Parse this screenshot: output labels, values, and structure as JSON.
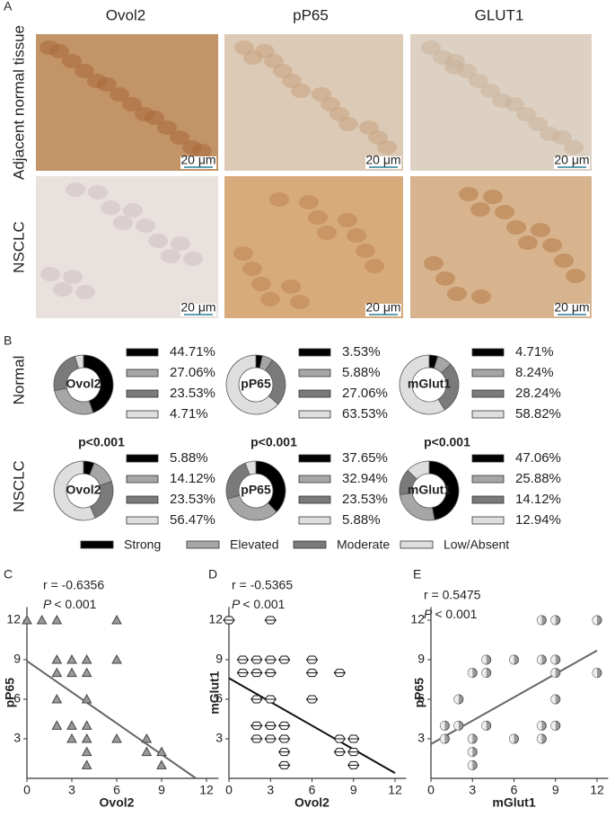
{
  "figure_a": {
    "label": "A",
    "columns": [
      "Ovol2",
      "pP65",
      "GLUT1"
    ],
    "rows": [
      "Adjacent normal tissue",
      "NSCLC"
    ],
    "scale_bar": "20 μm"
  },
  "chart_data": [
    {
      "type": "donut-grid",
      "panel": "B",
      "categories": [
        "Strong",
        "Elevated",
        "Moderate",
        "Low/Absent"
      ],
      "colors": [
        "#000000",
        "#a6a6a6",
        "#7a7a7a",
        "#dedede"
      ],
      "rows": [
        {
          "name": "Normal",
          "donuts": [
            {
              "label": "Ovol2",
              "values": [
                44.71,
                27.06,
                23.53,
                4.71
              ],
              "value_labels": [
                "44.71%",
                "27.06%",
                "23.53%",
                "4.71%"
              ]
            },
            {
              "label": "pP65",
              "values": [
                3.53,
                5.88,
                27.06,
                63.53
              ],
              "value_labels": [
                "3.53%",
                "5.88%",
                "27.06%",
                "63.53%"
              ]
            },
            {
              "label": "mGlut1",
              "values": [
                4.71,
                8.24,
                28.24,
                58.82
              ],
              "value_labels": [
                "4.71%",
                "8.24%",
                "28.24%",
                "58.82%"
              ]
            }
          ]
        },
        {
          "name": "NSCLC",
          "annotation": "p<0.001",
          "donuts": [
            {
              "label": "Ovol2",
              "values": [
                5.88,
                14.12,
                23.53,
                56.47
              ],
              "value_labels": [
                "5.88%",
                "14.12%",
                "23.53%",
                "56.47%"
              ]
            },
            {
              "label": "pP65",
              "values": [
                37.65,
                32.94,
                23.53,
                5.88
              ],
              "value_labels": [
                "37.65%",
                "32.94%",
                "23.53%",
                "5.88%"
              ]
            },
            {
              "label": "mGlut1",
              "values": [
                47.06,
                25.88,
                14.12,
                12.94
              ],
              "value_labels": [
                "47.06%",
                "25.88%",
                "14.12%",
                "12.94%"
              ]
            }
          ]
        }
      ]
    },
    {
      "type": "scatter",
      "panel": "C",
      "r_text": "r = -0.6356",
      "p_label": "P",
      "p_text": "< 0.001",
      "xlabel": "Ovol2",
      "ylabel": "pP65",
      "marker": "triangle",
      "color": "#999999",
      "x": [
        0,
        1,
        2,
        6,
        6,
        2,
        3,
        4,
        2,
        3,
        4,
        2,
        4,
        2,
        3,
        4,
        3,
        4,
        6,
        4,
        4,
        8,
        8,
        9,
        9
      ],
      "y": [
        12,
        12,
        12,
        12,
        9,
        9,
        9,
        9,
        8,
        8,
        8,
        6,
        6,
        4,
        4,
        4,
        3,
        3,
        3,
        2,
        1,
        3,
        2,
        2,
        1
      ],
      "fit": {
        "x": [
          0,
          11.3
        ],
        "y": [
          8.9,
          0
        ]
      },
      "xlim": [
        0,
        12.8
      ],
      "ylim": [
        0,
        13
      ],
      "xticks": [
        0,
        3,
        6,
        9,
        12
      ],
      "yticks": [
        3,
        6,
        9,
        12
      ]
    },
    {
      "type": "scatter",
      "panel": "D",
      "r_text": "r = -0.5365",
      "p_label": "P",
      "p_text": "< 0.001",
      "xlabel": "Ovol2",
      "ylabel": "mGlut1",
      "marker": "hexagon",
      "color": "#ffffff",
      "x": [
        0,
        3,
        1,
        2,
        3,
        4,
        1,
        2,
        3,
        2,
        3,
        2,
        3,
        4,
        2,
        3,
        4,
        4,
        4,
        6,
        6,
        6,
        8,
        8,
        8,
        9,
        9,
        9
      ],
      "y": [
        12,
        12,
        9,
        9,
        9,
        9,
        8,
        8,
        8,
        6,
        6,
        4,
        4,
        4,
        3,
        3,
        3,
        2,
        1,
        9,
        8,
        6,
        8,
        3,
        2,
        3,
        2,
        1
      ],
      "fit": {
        "x": [
          0,
          12
        ],
        "y": [
          7.6,
          0.4
        ]
      },
      "xlim": [
        0,
        12.8
      ],
      "ylim": [
        0,
        13
      ],
      "xticks": [
        0,
        3,
        6,
        9,
        12
      ],
      "yticks": [
        3,
        6,
        9,
        12
      ]
    },
    {
      "type": "scatter",
      "panel": "E",
      "r_text": "r = 0.5475",
      "p_label": "P",
      "p_text": "< 0.001",
      "xlabel": "mGlut1",
      "ylabel": "pP65",
      "marker": "half-circle",
      "color": "#9a9a9a",
      "x": [
        1,
        1,
        2,
        2,
        3,
        3,
        3,
        3,
        4,
        4,
        4,
        6,
        6,
        8,
        8,
        8,
        8,
        9,
        9,
        9,
        9,
        9,
        12,
        12
      ],
      "y": [
        4,
        3,
        4,
        6,
        8,
        3,
        2,
        1,
        9,
        8,
        4,
        9,
        3,
        12,
        9,
        4,
        3,
        12,
        9,
        8,
        6,
        4,
        12,
        8
      ],
      "fit": {
        "x": [
          0,
          12
        ],
        "y": [
          2.6,
          9.7
        ]
      },
      "xlim": [
        0,
        12.8
      ],
      "ylim": [
        0,
        13
      ],
      "xticks": [
        0,
        3,
        6,
        9,
        12
      ],
      "yticks": [
        3,
        6,
        9,
        12
      ]
    }
  ]
}
